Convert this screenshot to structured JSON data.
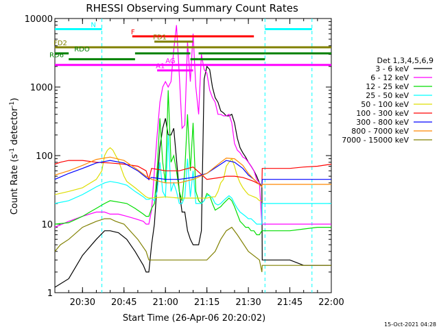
{
  "chart_data": {
    "type": "line",
    "title": "RHESSI Observing Summary Count Rates",
    "xlabel": "Start Time (26-Apr-06 20:20:02)",
    "ylabel_main": "Count Rate (s",
    "ylabel_sup1": "-1",
    "ylabel_mid": " detector",
    "ylabel_sup2": "-1",
    "ylabel_end": ")",
    "y_scale": "log",
    "ylim": [
      1,
      10000
    ],
    "xlim_minutes": [
      0,
      100
    ],
    "x_tick_minutes": [
      10,
      25,
      40,
      55,
      70,
      85,
      100
    ],
    "x_tick_labels": [
      "20:30",
      "20:45",
      "21:00",
      "21:15",
      "21:30",
      "21:45",
      "22:00"
    ],
    "y_tick_values": [
      1,
      10,
      100,
      1000,
      10000
    ],
    "y_tick_labels": [
      "1",
      "10",
      "100",
      "1000",
      "10000"
    ],
    "timestamp": "15-Oct-2021 04:28",
    "legend_header": "Det 1,3,4,5,6,9",
    "series": [
      {
        "name": "3 - 6 keV",
        "color": "#000000",
        "x": [
          0,
          5,
          10,
          15,
          18,
          20,
          23,
          26,
          29,
          32,
          33,
          34,
          35,
          36,
          37,
          38,
          39,
          40,
          41,
          42,
          43,
          45,
          46,
          47,
          48,
          49,
          50,
          51,
          52,
          53,
          54,
          55,
          56,
          57,
          58,
          59,
          60,
          61,
          62,
          63,
          64,
          65,
          66,
          67,
          68,
          69,
          70,
          71,
          72,
          73,
          74,
          74.9,
          75,
          80,
          85,
          90,
          95,
          100
        ],
        "y": [
          1.2,
          1.6,
          3.5,
          6,
          8,
          8,
          7.5,
          6,
          4,
          2.5,
          2,
          2,
          5,
          10,
          40,
          130,
          250,
          350,
          200,
          200,
          250,
          30,
          15,
          15,
          8,
          6,
          5,
          5,
          5,
          8,
          1300,
          2000,
          1800,
          1000,
          700,
          600,
          450,
          420,
          380,
          380,
          400,
          300,
          180,
          130,
          110,
          95,
          80,
          70,
          60,
          50,
          40,
          35,
          3,
          3,
          3,
          2.5,
          2.5,
          2.5
        ]
      },
      {
        "name": "6 - 12 keV",
        "color": "#ff00ff",
        "x": [
          0,
          5,
          10,
          15,
          18,
          20,
          23,
          26,
          29,
          32,
          33,
          34,
          35,
          36,
          37,
          38,
          39,
          40,
          41,
          42,
          43,
          44,
          45,
          46,
          47,
          48,
          49,
          50,
          51,
          52,
          53,
          54,
          55,
          56,
          57,
          58,
          59,
          60,
          61,
          62,
          63,
          64,
          65,
          66,
          67,
          68,
          69,
          70,
          71,
          72,
          73,
          74,
          74.9,
          75,
          80,
          85,
          90,
          95,
          100
        ],
        "y": [
          9,
          11,
          13,
          15,
          15,
          14,
          14,
          13,
          12,
          11,
          10,
          10,
          16,
          60,
          200,
          600,
          1000,
          1200,
          1000,
          1200,
          3500,
          8000,
          1500,
          250,
          280,
          4500,
          1200,
          6000,
          1000,
          400,
          3000,
          1800,
          1600,
          900,
          700,
          600,
          400,
          400,
          380,
          380,
          400,
          300,
          150,
          120,
          110,
          95,
          90,
          80,
          70,
          60,
          45,
          40,
          10,
          10,
          10,
          10,
          10,
          10,
          10
        ]
      },
      {
        "name": "12 - 25 keV",
        "color": "#00dd00",
        "x": [
          0,
          5,
          10,
          15,
          18,
          20,
          23,
          26,
          29,
          32,
          33,
          34,
          35,
          36,
          37,
          38,
          39,
          40,
          41,
          42,
          43,
          44,
          45,
          46,
          47,
          48,
          49,
          50,
          51,
          52,
          53,
          54,
          55,
          56,
          57,
          58,
          59,
          60,
          61,
          62,
          63,
          64,
          65,
          66,
          67,
          68,
          69,
          70,
          71,
          72,
          73,
          74,
          74.9,
          75,
          80,
          85,
          90,
          95,
          100
        ],
        "y": [
          10,
          10.5,
          13,
          17,
          20,
          22,
          21,
          20,
          17,
          14,
          13,
          13,
          17,
          20,
          60,
          350,
          80,
          40,
          900,
          80,
          100,
          60,
          30,
          22,
          60,
          400,
          60,
          300,
          30,
          22,
          20,
          22,
          28,
          26,
          20,
          16,
          17,
          18,
          20,
          22,
          24,
          22,
          18,
          14,
          11,
          10,
          9,
          9,
          8,
          8,
          7,
          7,
          8,
          8,
          8,
          8,
          8.5,
          9,
          9
        ]
      },
      {
        "name": "25 - 50 keV",
        "color": "#00ffff",
        "x": [
          0,
          5,
          10,
          15,
          18,
          20,
          23,
          26,
          29,
          32,
          33,
          34,
          35,
          36,
          37,
          38,
          39,
          40,
          41,
          42,
          43,
          44,
          45,
          46,
          47,
          48,
          49,
          50,
          51,
          52,
          53,
          54,
          55,
          56,
          57,
          58,
          59,
          60,
          61,
          62,
          63,
          64,
          65,
          66,
          67,
          68,
          69,
          70,
          71,
          72,
          73,
          74,
          74.9,
          75,
          80,
          85,
          90,
          95,
          100
        ],
        "y": [
          20,
          22,
          27,
          35,
          40,
          42,
          40,
          37,
          30,
          25,
          23,
          23,
          24,
          22,
          30,
          80,
          30,
          25,
          200,
          30,
          40,
          30,
          20,
          20,
          25,
          90,
          25,
          60,
          20,
          20,
          20,
          22,
          26,
          26,
          24,
          20,
          19,
          20,
          22,
          24,
          26,
          24,
          20,
          17,
          15,
          14,
          13,
          12,
          12,
          11,
          10,
          10,
          10,
          20,
          20,
          20,
          20,
          20,
          20
        ]
      },
      {
        "name": "50 - 100 keV",
        "color": "#dddd00",
        "x": [
          0,
          5,
          10,
          15,
          17,
          18,
          19,
          20,
          21,
          22,
          23,
          24,
          25,
          26,
          29,
          32,
          33,
          34,
          35,
          40,
          45,
          47,
          50,
          55,
          57,
          58,
          59,
          60,
          61,
          62,
          63,
          64,
          65,
          66,
          67,
          68,
          69,
          70,
          71,
          72,
          73,
          74,
          74.9
        ],
        "y": [
          27,
          30,
          34,
          45,
          60,
          100,
          120,
          130,
          120,
          100,
          85,
          65,
          50,
          42,
          34,
          27,
          25,
          24,
          24,
          25,
          24,
          24,
          24,
          24,
          25,
          25,
          30,
          40,
          45,
          70,
          80,
          90,
          70,
          50,
          40,
          34,
          30,
          27,
          26,
          25,
          24,
          22,
          22
        ]
      },
      {
        "name": "100 - 300 keV",
        "color": "#ff0000",
        "x": [
          0,
          2,
          5,
          10,
          15,
          20,
          25,
          30,
          33,
          34,
          35,
          40,
          45,
          50,
          55,
          60,
          62,
          65,
          68,
          70,
          72,
          74,
          74.9,
          75,
          80,
          85,
          90,
          95,
          100
        ],
        "y": [
          75,
          80,
          85,
          85,
          80,
          78,
          75,
          70,
          60,
          45,
          65,
          60,
          60,
          68,
          45,
          48,
          50,
          50,
          48,
          45,
          42,
          38,
          35,
          65,
          65,
          65,
          68,
          70,
          75
        ]
      },
      {
        "name": "300 - 800 keV",
        "color": "#0000ff",
        "x": [
          0,
          5,
          10,
          15,
          20,
          25,
          30,
          33,
          34,
          35,
          40,
          45,
          50,
          55,
          60,
          62,
          65,
          68,
          70,
          72,
          74,
          74.9,
          75,
          80,
          85,
          90,
          95,
          100
        ],
        "y": [
          45,
          55,
          65,
          78,
          85,
          78,
          60,
          48,
          45,
          48,
          45,
          45,
          48,
          55,
          75,
          85,
          80,
          65,
          52,
          45,
          38,
          35,
          45,
          45,
          45,
          45,
          45,
          45
        ]
      },
      {
        "name": "800 - 7000 keV",
        "color": "#ff8800",
        "x": [
          0,
          5,
          10,
          15,
          20,
          25,
          30,
          33,
          34,
          35,
          40,
          45,
          50,
          55,
          60,
          62,
          65,
          68,
          70,
          72,
          74,
          74.9,
          75,
          80,
          85,
          90,
          95,
          100
        ],
        "y": [
          52,
          60,
          72,
          88,
          95,
          85,
          62,
          50,
          48,
          45,
          40,
          40,
          45,
          55,
          80,
          92,
          90,
          72,
          55,
          45,
          38,
          35,
          38,
          38,
          38,
          38,
          38,
          38
        ]
      },
      {
        "name": "7000 - 15000 keV",
        "color": "#808000",
        "x": [
          0,
          2,
          5,
          10,
          15,
          18,
          20,
          22,
          25,
          30,
          33,
          34,
          35,
          40,
          45,
          50,
          55,
          58,
          60,
          62,
          64,
          66,
          70,
          74,
          74.9,
          75,
          80,
          85,
          90,
          95,
          100
        ],
        "y": [
          4,
          5,
          6,
          9,
          11,
          12,
          12,
          11,
          10,
          6,
          4,
          3,
          3,
          3,
          3,
          3,
          3,
          4,
          6,
          8,
          9,
          7,
          4,
          3,
          2,
          2.5,
          2.5,
          2.5,
          2.5,
          2.5,
          2.5
        ]
      }
    ],
    "markers": {
      "vertical_lines_minutes": [
        17,
        76,
        93
      ],
      "bars": [
        {
          "label": "N",
          "color": "#00ffff",
          "y": 7000,
          "segments": [
            [
              0,
              17
            ],
            [
              76,
              93
            ]
          ]
        },
        {
          "label": "F",
          "color": "#ff0000",
          "y": 5500,
          "segments": [
            [
              28,
              72
            ]
          ]
        },
        {
          "label": "FD1",
          "color": "#808000",
          "y": 4600,
          "segments": [
            [
              36,
              50
            ]
          ]
        },
        {
          "label": "FD2",
          "color": "#808000",
          "y": 3800,
          "segments": [
            [
              0,
              100
            ]
          ]
        },
        {
          "label": "RDO",
          "color": "#008000",
          "y": 3100,
          "segments": [
            [
              0,
              5
            ],
            [
              29,
              49
            ],
            [
              52,
              76
            ],
            [
              76,
              100
            ]
          ]
        },
        {
          "label": "RD6",
          "color": "#008000",
          "y": 2550,
          "segments": [
            [
              5,
              29
            ],
            [
              49,
              52
            ],
            [
              52,
              76
            ]
          ]
        },
        {
          "label": "AG",
          "color": "#ff00ff",
          "y": 2100,
          "segments": [
            [
              0,
              100
            ]
          ]
        },
        {
          "label": "A1",
          "color": "#ff00ff",
          "y": 1750,
          "segments": [
            [
              37,
              50
            ]
          ]
        }
      ]
    }
  }
}
